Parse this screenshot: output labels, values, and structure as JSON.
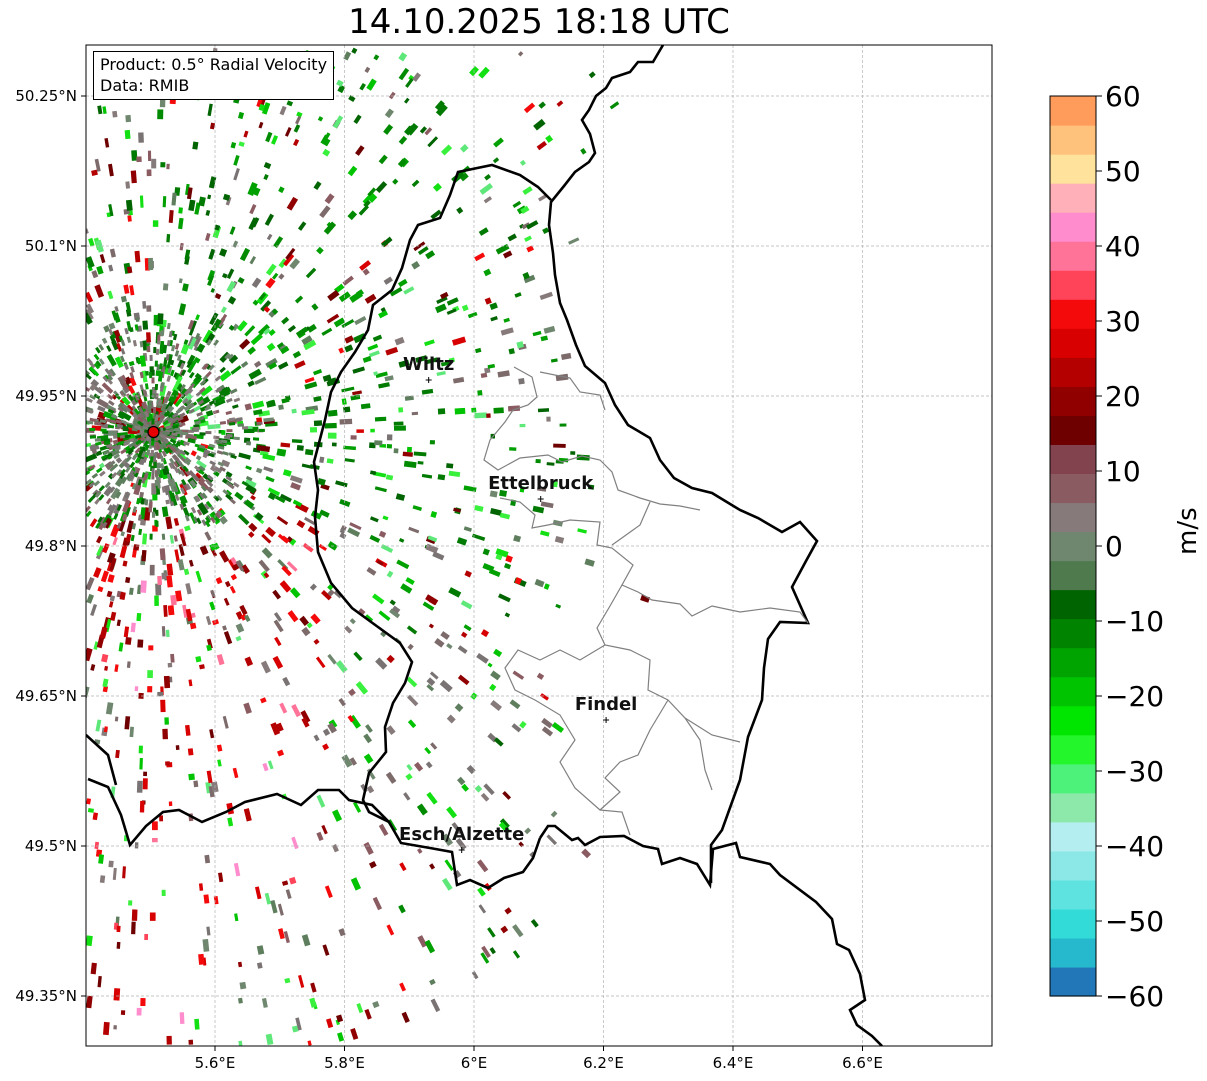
{
  "title": "14.10.2025 18:18 UTC",
  "info": {
    "product": "Product: 0.5° Radial Velocity",
    "data": "Data: RMIB"
  },
  "map": {
    "lon_range": [
      5.4,
      6.8
    ],
    "lat_range": [
      49.3,
      50.3
    ],
    "lon_ticks": [
      "5.6°E",
      "5.8°E",
      "6°E",
      "6.2°E",
      "6.4°E",
      "6.6°E"
    ],
    "lat_ticks": [
      "50.25°N",
      "50.1°N",
      "49.95°N",
      "49.8°N",
      "49.65°N",
      "49.5°N",
      "49.35°N"
    ],
    "grid": true,
    "radar_site": {
      "lon": 5.505,
      "lat": 49.914
    },
    "cities": [
      {
        "name": "Wiltz",
        "lon": 5.93,
        "lat": 49.966
      },
      {
        "name": "Ettelbruck",
        "lon": 6.103,
        "lat": 49.847
      },
      {
        "name": "Findel",
        "lon": 6.204,
        "lat": 49.626
      },
      {
        "name": "Esch/Alzette",
        "lon": 5.981,
        "lat": 49.496
      }
    ]
  },
  "colorbar": {
    "label": "m/s",
    "min": -60,
    "max": 60,
    "ticks": [
      "60",
      "50",
      "40",
      "30",
      "20",
      "10",
      "0",
      "−10",
      "−20",
      "−30",
      "−40",
      "−50",
      "−60"
    ],
    "colors": [
      "#2177b8",
      "#26b8cc",
      "#33dbd8",
      "#5fe3e1",
      "#8be8e6",
      "#b5eef0",
      "#8de9aa",
      "#4df27a",
      "#23f62a",
      "#00e600",
      "#00c400",
      "#00a400",
      "#008400",
      "#006400",
      "#4e7a4e",
      "#6e876e",
      "#867a7a",
      "#8a5c62",
      "#82434e",
      "#6e0000",
      "#900000",
      "#b50000",
      "#d80000",
      "#f40a0a",
      "#ff4459",
      "#ff7398",
      "#ff8ccc",
      "#ffb0b8",
      "#ffe29c",
      "#ffc27c",
      "#ff9c5c"
    ]
  }
}
